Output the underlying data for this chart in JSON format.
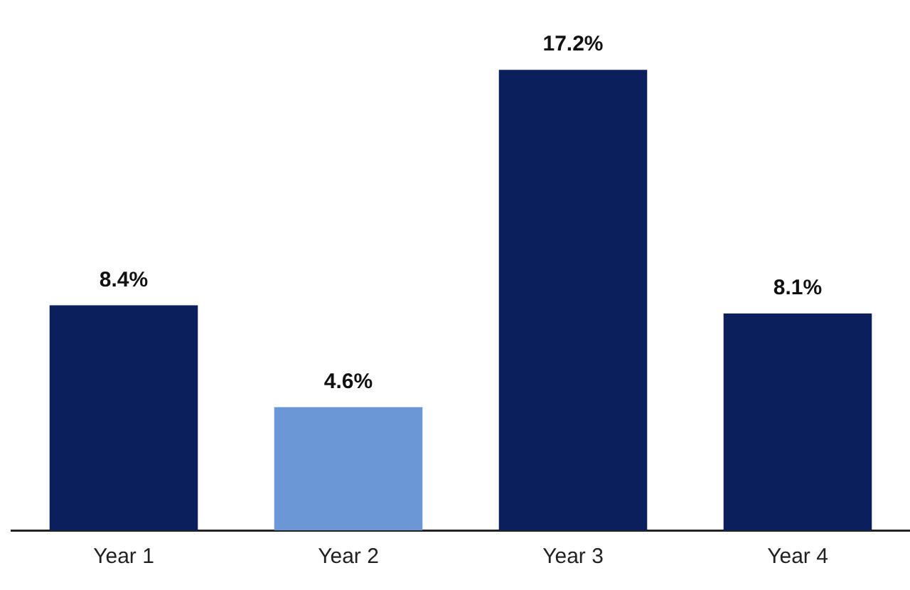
{
  "chart_data": {
    "type": "bar",
    "categories": [
      "Year 1",
      "Year 2",
      "Year 3",
      "Year 4"
    ],
    "values": [
      8.4,
      4.6,
      17.2,
      8.1
    ],
    "colors": [
      "#0b1f5c",
      "#6b97d6",
      "#0b1f5c",
      "#0b1f5c"
    ],
    "value_labels": [
      "8.4%",
      "4.6%",
      "17.2%",
      "8.1%"
    ],
    "grid": false,
    "legend": false
  }
}
